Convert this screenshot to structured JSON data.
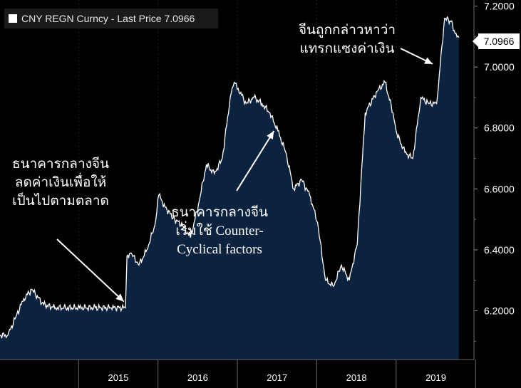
{
  "chart_data": {
    "type": "area",
    "title": "CNY REGN Curncy - Last Price 7.0966",
    "last_price_label": "7.0966",
    "ylim": [
      6.04,
      7.22
    ],
    "y_ticks": [
      "6.2000",
      "6.4000",
      "6.6000",
      "6.8000",
      "7.0000",
      "7.2000"
    ],
    "x_ticks": [
      "2015",
      "2016",
      "2017",
      "2018",
      "2019"
    ],
    "x": [
      2014.0,
      2014.1,
      2014.2,
      2014.3,
      2014.4,
      2014.55,
      2014.7,
      2014.85,
      2015.0,
      2015.2,
      2015.4,
      2015.58,
      2015.6,
      2015.65,
      2015.75,
      2015.85,
      2015.95,
      2016.0,
      2016.08,
      2016.2,
      2016.3,
      2016.4,
      2016.5,
      2016.6,
      2016.7,
      2016.8,
      2016.9,
      2016.95,
      2017.0,
      2017.1,
      2017.2,
      2017.3,
      2017.4,
      2017.5,
      2017.6,
      2017.7,
      2017.8,
      2017.9,
      2018.0,
      2018.1,
      2018.2,
      2018.3,
      2018.4,
      2018.5,
      2018.6,
      2018.75,
      2018.85,
      2018.95,
      2019.0,
      2019.1,
      2019.2,
      2019.3,
      2019.4,
      2019.5,
      2019.6,
      2019.68,
      2019.72,
      2019.78
    ],
    "values": [
      6.12,
      6.12,
      6.18,
      6.24,
      6.27,
      6.22,
      6.21,
      6.21,
      6.21,
      6.21,
      6.21,
      6.21,
      6.38,
      6.39,
      6.35,
      6.4,
      6.48,
      6.58,
      6.54,
      6.5,
      6.48,
      6.44,
      6.55,
      6.68,
      6.65,
      6.7,
      6.9,
      6.95,
      6.93,
      6.88,
      6.9,
      6.88,
      6.85,
      6.79,
      6.72,
      6.6,
      6.63,
      6.58,
      6.49,
      6.3,
      6.28,
      6.35,
      6.3,
      6.42,
      6.85,
      6.92,
      6.95,
      6.85,
      6.78,
      6.72,
      6.7,
      6.9,
      6.88,
      6.88,
      7.16,
      7.15,
      7.12,
      7.0966
    ],
    "annotations": [
      {
        "id": "pboc-devalue",
        "lines": [
          "ธนาคารกลางจีน",
          "ลดค่าเงินเพื่อให้",
          "เป็นไปตามตลาด"
        ],
        "target_x": 2015.56,
        "target_y": 6.23
      },
      {
        "id": "counter-cyclical",
        "lines": [
          "ธนาคารกลางจีน",
          "เริ่มใช้ Counter-",
          "Cyclical factors"
        ],
        "target_x": 2017.45,
        "target_y": 6.79
      },
      {
        "id": "manipulator",
        "lines": [
          "จีนถูกกล่าวหาว่า",
          "แทรกแซงค่าเงิน"
        ],
        "target_x": 2019.45,
        "target_y": 7.01
      }
    ]
  }
}
